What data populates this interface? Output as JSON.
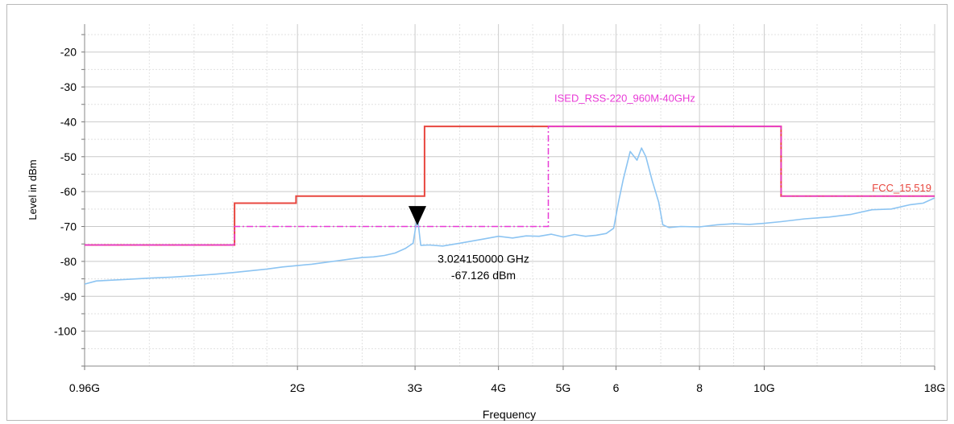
{
  "chart_data": {
    "type": "line",
    "title": "",
    "xlabel": "Frequency",
    "ylabel": "Level in dBm",
    "x_scale": "log",
    "xlim_ghz": [
      0.96,
      18
    ],
    "ylim": [
      -110,
      -12
    ],
    "grid": true,
    "x_ticks": [
      {
        "value": 0.96,
        "label": "0.96G"
      },
      {
        "value": 2,
        "label": "2G"
      },
      {
        "value": 3,
        "label": "3G"
      },
      {
        "value": 4,
        "label": "4G"
      },
      {
        "value": 5,
        "label": "5G"
      },
      {
        "value": 6,
        "label": "6"
      },
      {
        "value": 8,
        "label": "8"
      },
      {
        "value": 10,
        "label": "10G"
      },
      {
        "value": 18,
        "label": "18G"
      }
    ],
    "y_ticks": [
      {
        "value": -20,
        "label": "-20"
      },
      {
        "value": -30,
        "label": "-30"
      },
      {
        "value": -40,
        "label": "-40"
      },
      {
        "value": -50,
        "label": "-50"
      },
      {
        "value": -60,
        "label": "-60"
      },
      {
        "value": -70,
        "label": "-70"
      },
      {
        "value": -80,
        "label": "-80"
      },
      {
        "value": -90,
        "label": "-90"
      },
      {
        "value": -100,
        "label": "-100"
      }
    ],
    "series": [
      {
        "name": "FCC_15.519",
        "color": "#e8473f",
        "style": "solid-step",
        "x_ghz": [
          0.96,
          1.61,
          1.61,
          1.99,
          1.99,
          3.1,
          3.1,
          10.6,
          10.6,
          18
        ],
        "y_dbm": [
          -75.3,
          -75.3,
          -63.3,
          -63.3,
          -61.3,
          -61.3,
          -41.3,
          -41.3,
          -61.3,
          -61.3
        ]
      },
      {
        "name": "ISED_RSS-220_960M-40GHz",
        "color": "#e83ad6",
        "style": "dashdot-step",
        "x_ghz": [
          0.96,
          1.61,
          1.61,
          4.75,
          4.75,
          10.6,
          10.6,
          18
        ],
        "y_dbm": [
          -75.3,
          -75.3,
          -70,
          -70,
          -41.3,
          -41.3,
          -61.3,
          -61.3
        ]
      },
      {
        "name": "",
        "color": "#8cc4f2",
        "style": "trace",
        "x_ghz": [
          0.96,
          1.0,
          1.1,
          1.2,
          1.3,
          1.4,
          1.5,
          1.6,
          1.7,
          1.8,
          1.9,
          2.0,
          2.1,
          2.2,
          2.3,
          2.4,
          2.5,
          2.6,
          2.7,
          2.8,
          2.9,
          2.98,
          3.024,
          3.06,
          3.15,
          3.3,
          3.5,
          3.8,
          4.0,
          4.2,
          4.4,
          4.6,
          4.8,
          5.0,
          5.2,
          5.4,
          5.6,
          5.8,
          5.95,
          6.05,
          6.15,
          6.3,
          6.45,
          6.55,
          6.65,
          6.8,
          6.95,
          7.05,
          7.2,
          7.5,
          8.0,
          8.5,
          9.0,
          9.5,
          10.0,
          10.6,
          11.5,
          12.5,
          13.5,
          14.5,
          15.5,
          16.5,
          17.3,
          18.0
        ],
        "y_dbm": [
          -86.5,
          -85.6,
          -85.2,
          -84.8,
          -84.5,
          -84.1,
          -83.7,
          -83.2,
          -82.7,
          -82.2,
          -81.6,
          -81.2,
          -80.8,
          -80.3,
          -79.8,
          -79.3,
          -78.9,
          -78.7,
          -78.3,
          -77.6,
          -76.3,
          -74.8,
          -67.1,
          -75.4,
          -75.3,
          -75.6,
          -74.8,
          -73.6,
          -72.8,
          -73.3,
          -72.7,
          -72.8,
          -72.2,
          -73.0,
          -72.3,
          -72.8,
          -72.5,
          -72.0,
          -70.5,
          -63.0,
          -56.5,
          -48.5,
          -51.0,
          -47.5,
          -50.0,
          -57.0,
          -63.0,
          -69.5,
          -70.3,
          -70.0,
          -70.1,
          -69.5,
          -69.2,
          -69.4,
          -69.1,
          -68.6,
          -67.8,
          -67.3,
          -66.5,
          -65.2,
          -65.0,
          -63.8,
          -63.3,
          -61.8
        ]
      }
    ],
    "limit_labels": [
      {
        "text": "ISED_RSS-220_960M-40GHz",
        "color": "#e83ad6"
      },
      {
        "text": "FCC_15.519",
        "color": "#e8473f"
      }
    ],
    "marker": {
      "x_ghz": 3.02415,
      "y_dbm": -67.126,
      "freq_label": "3.024150000 GHz",
      "level_label": "-67.126 dBm"
    }
  }
}
